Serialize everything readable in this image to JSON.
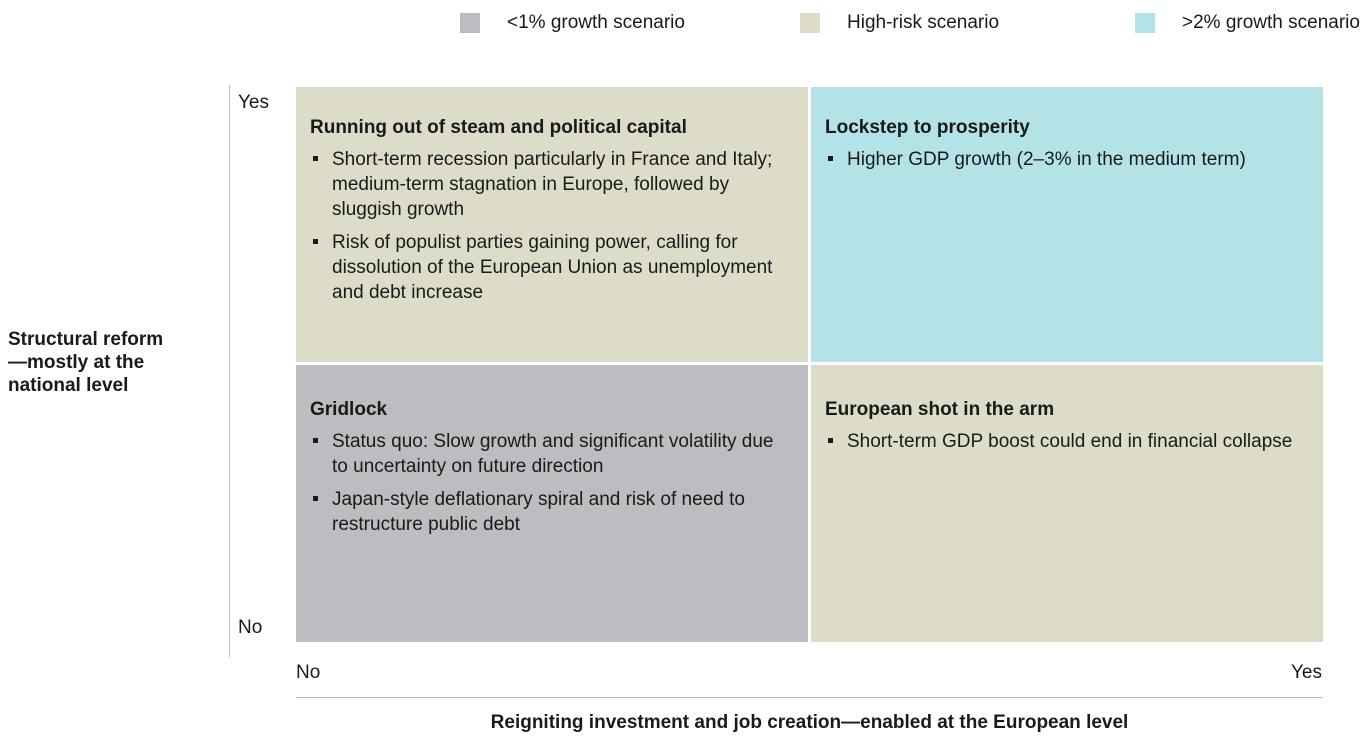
{
  "legend": [
    {
      "label": "<1% growth scenario",
      "color": "#bcbcc1"
    },
    {
      "label": "High-risk scenario",
      "color": "#dcdcc8"
    },
    {
      "label": ">2% growth scenario",
      "color": "#b3e3e6"
    }
  ],
  "y_axis": {
    "label": "Structural reform —mostly at the national level",
    "high": "Yes",
    "low": "No"
  },
  "x_axis": {
    "label": "Reigniting investment and job creation—enabled at the European level",
    "low": "No",
    "high": "Yes"
  },
  "quadrants": [
    {
      "title": "Running out of steam and political capital",
      "color": "#dcdcc8",
      "bullets": [
        "Short-term recession particularly in France and Italy; medium-term stagnation in Europe, followed by sluggish growth",
        "Risk of populist parties gaining power, calling for dissolution of the European Union as unemployment and debt increase"
      ]
    },
    {
      "title": "Lockstep to prosperity",
      "color": "#b3e3e6",
      "bullets": [
        "Higher GDP growth (2–3% in the medium term)"
      ]
    },
    {
      "title": "Gridlock",
      "color": "#bcbcc1",
      "bullets": [
        "Status quo: Slow growth and significant volatility due to uncertainty on future direction",
        "Japan-style deflationary spiral and risk of need to restructure public debt"
      ]
    },
    {
      "title": "European shot in the arm",
      "color": "#dcdcc8",
      "bullets": [
        "Short-term GDP boost could end in financial collapse"
      ]
    }
  ]
}
